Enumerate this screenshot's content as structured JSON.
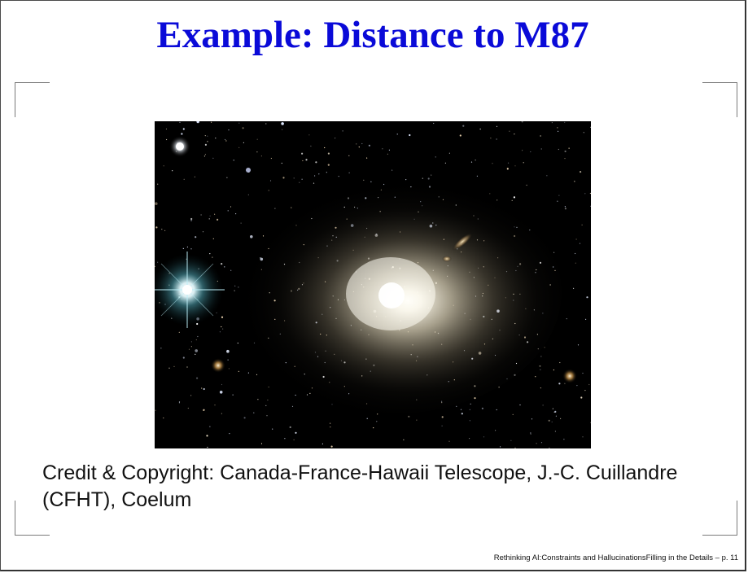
{
  "slide": {
    "title": "Example: Distance to M87",
    "image": {
      "subject": "elliptical galaxy M87 star field",
      "background_color": "#000000"
    },
    "credit": "Credit & Copyright: Canada-France-Hawaii Telescope, J.-C. Cuillandre (CFHT), Coelum",
    "footer": {
      "text": "Rethinking AI:Constraints and HallucinationsFilling in the Details – p. 11"
    }
  },
  "colors": {
    "title": "#0a0ad8",
    "text": "#111111",
    "corner_marks": "#7a7a7a"
  }
}
